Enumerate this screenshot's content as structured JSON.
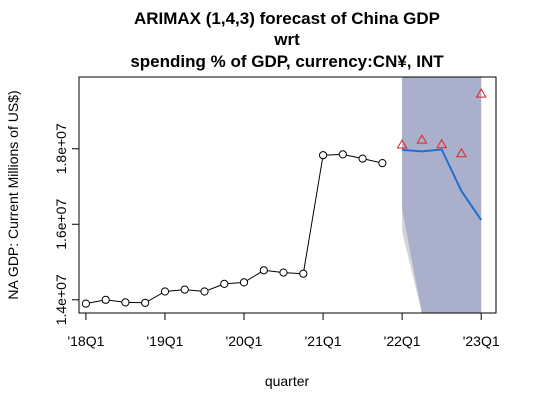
{
  "chart_data": {
    "type": "line",
    "title_lines": [
      "ARIMAX (1,4,3) forecast of  China GDP",
      "wrt",
      "spending % of GDP, currency:CN¥, INT"
    ],
    "xlabel": "quarter",
    "ylabel": "NA GDP: Current Millions of US$)",
    "x_ticks": [
      "'18Q1",
      "'19Q1",
      "'20Q1",
      "'21Q1",
      "'22Q1",
      "'23Q1"
    ],
    "y_ticks": [
      "1.4e+07",
      "1.6e+07",
      "1.8e+07"
    ],
    "ylim": [
      13650000,
      19900000
    ],
    "series": [
      {
        "kind": "history",
        "color": "#000000",
        "x": [
          "2018Q1",
          "2018Q2",
          "2018Q3",
          "2018Q4",
          "2019Q1",
          "2019Q2",
          "2019Q3",
          "2019Q4",
          "2020Q1",
          "2020Q2",
          "2020Q3",
          "2020Q4",
          "2021Q1",
          "2021Q2",
          "2021Q3",
          "2021Q4"
        ],
        "values": [
          13900000,
          14000000,
          13930000,
          13920000,
          14220000,
          14270000,
          14220000,
          14420000,
          14460000,
          14780000,
          14720000,
          14690000,
          17830000,
          17850000,
          17740000,
          17620000
        ]
      },
      {
        "kind": "forecast",
        "color": "#1f6fd1",
        "x": [
          "2022Q1",
          "2022Q2",
          "2022Q3",
          "2022Q4",
          "2023Q1"
        ],
        "values": [
          17970000,
          17930000,
          17980000,
          16880000,
          16110000
        ]
      },
      {
        "kind": "actual",
        "color": "#dd2222",
        "x": [
          "2022Q1",
          "2022Q2",
          "2022Q3",
          "2022Q4",
          "2023Q1"
        ],
        "values": [
          18110000,
          18240000,
          18120000,
          17880000,
          19460000
        ]
      }
    ],
    "interval_outer": {
      "color": "#d3d3d8",
      "x": [
        "2022Q1",
        "2022Q2",
        "2022Q3",
        "2022Q4",
        "2023Q1"
      ],
      "lower": [
        15800000,
        13600000,
        13600000,
        13600000,
        13600000
      ],
      "upper": [
        19900000,
        19900000,
        19900000,
        19900000,
        19900000
      ]
    },
    "interval_inner": {
      "color": "#aab0cc",
      "x": [
        "2022Q1",
        "2022Q2",
        "2022Q3",
        "2022Q4",
        "2023Q1"
      ],
      "lower": [
        16400000,
        13600000,
        13600000,
        13600000,
        13600000
      ],
      "upper": [
        19900000,
        19900000,
        19900000,
        19900000,
        19900000
      ]
    },
    "grid": false,
    "legend": "none"
  }
}
